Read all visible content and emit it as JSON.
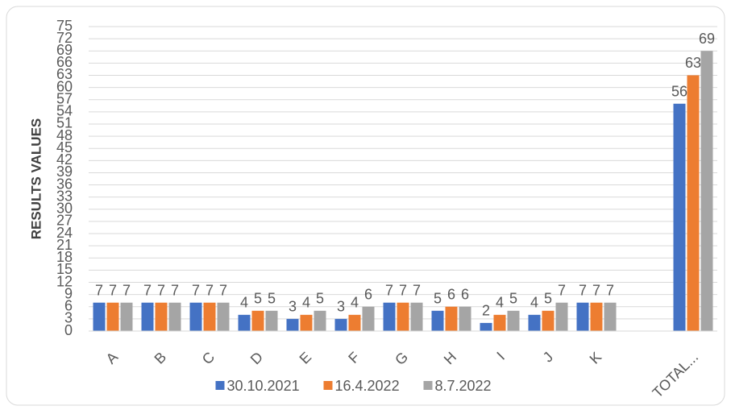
{
  "chart_data": {
    "type": "bar",
    "y_axis_label": "RESULTS VALUES",
    "categories": [
      "A",
      "B",
      "C",
      "D",
      "E",
      "F",
      "G",
      "H",
      "I",
      "J",
      "K",
      null,
      "TOTAL..."
    ],
    "series": [
      {
        "name": "30.10.2021",
        "color": "#4472c4",
        "values": [
          7,
          7,
          7,
          4,
          3,
          3,
          7,
          5,
          2,
          4,
          7,
          null,
          56
        ]
      },
      {
        "name": "16.4.2022",
        "color": "#ed7d31",
        "values": [
          7,
          7,
          7,
          5,
          4,
          4,
          7,
          6,
          4,
          5,
          7,
          null,
          63
        ]
      },
      {
        "name": "8.7.2022",
        "color": "#a5a5a5",
        "values": [
          7,
          7,
          7,
          5,
          5,
          6,
          7,
          6,
          5,
          7,
          7,
          null,
          69
        ]
      }
    ],
    "ylim": [
      0,
      75
    ],
    "yticks": [
      0,
      3,
      6,
      9,
      12,
      15,
      18,
      21,
      24,
      27,
      30,
      33,
      36,
      39,
      42,
      45,
      48,
      51,
      54,
      57,
      60,
      63,
      66,
      69,
      72,
      75
    ],
    "grid": true,
    "legend": "bottom"
  }
}
